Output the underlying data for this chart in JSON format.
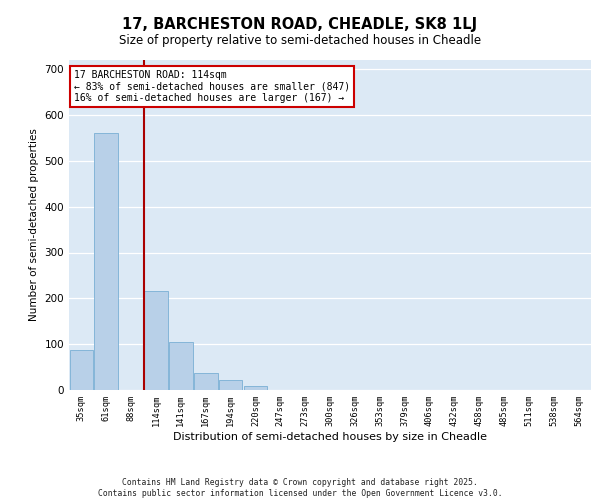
{
  "title1": "17, BARCHESTON ROAD, CHEADLE, SK8 1LJ",
  "title2": "Size of property relative to semi-detached houses in Cheadle",
  "xlabel": "Distribution of semi-detached houses by size in Cheadle",
  "ylabel": "Number of semi-detached properties",
  "categories": [
    "35sqm",
    "61sqm",
    "88sqm",
    "114sqm",
    "141sqm",
    "167sqm",
    "194sqm",
    "220sqm",
    "247sqm",
    "273sqm",
    "300sqm",
    "326sqm",
    "353sqm",
    "379sqm",
    "406sqm",
    "432sqm",
    "458sqm",
    "485sqm",
    "511sqm",
    "538sqm",
    "564sqm"
  ],
  "values": [
    88,
    560,
    0,
    215,
    105,
    38,
    22,
    8,
    0,
    0,
    0,
    0,
    0,
    0,
    0,
    0,
    0,
    0,
    0,
    0,
    0
  ],
  "bar_color": "#b8d0e8",
  "bar_edge_color": "#7aafd4",
  "vline_x_index": 3,
  "vline_color": "#aa0000",
  "annotation_title": "17 BARCHESTON ROAD: 114sqm",
  "annotation_line1": "← 83% of semi-detached houses are smaller (847)",
  "annotation_line2": "16% of semi-detached houses are larger (167) →",
  "annotation_box_color": "#cc0000",
  "ylim": [
    0,
    720
  ],
  "yticks": [
    0,
    100,
    200,
    300,
    400,
    500,
    600,
    700
  ],
  "bg_color": "#dce9f5",
  "footnote1": "Contains HM Land Registry data © Crown copyright and database right 2025.",
  "footnote2": "Contains public sector information licensed under the Open Government Licence v3.0."
}
